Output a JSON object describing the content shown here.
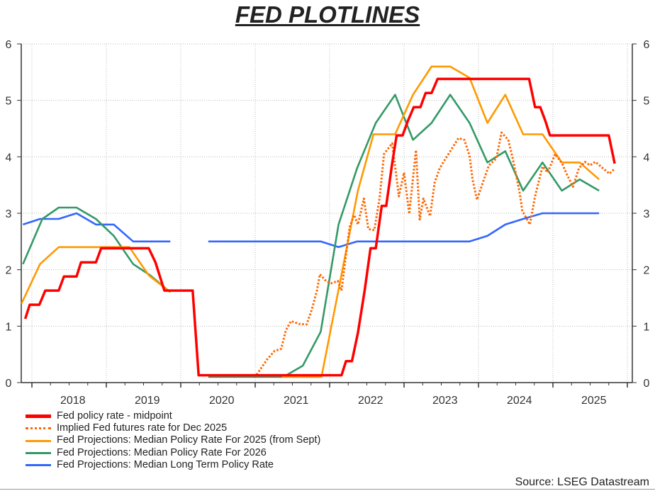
{
  "chart_data": {
    "type": "line",
    "title": "FED PLOTLINES",
    "xlabel": "",
    "ylabel": "",
    "xlim": [
      2017.86,
      2026.07
    ],
    "ylim": [
      0,
      6
    ],
    "y_ticks": [
      "0",
      "1",
      "2",
      "3",
      "4",
      "5",
      "6"
    ],
    "x_tick_labels": [
      "2018",
      "2019",
      "2020",
      "2021",
      "2022",
      "2023",
      "2024",
      "2025"
    ],
    "grid": true,
    "legend_placement": "bottom-left",
    "source": "Source: LSEG Datastream",
    "series": [
      {
        "name": "Fed policy rate - midpoint",
        "color": "#FF0000",
        "style": "solid",
        "points": [
          [
            2017.91,
            1.13
          ],
          [
            2017.97,
            1.38
          ],
          [
            2018.1,
            1.38
          ],
          [
            2018.18,
            1.63
          ],
          [
            2018.36,
            1.63
          ],
          [
            2018.43,
            1.88
          ],
          [
            2018.6,
            1.88
          ],
          [
            2018.66,
            2.13
          ],
          [
            2018.86,
            2.13
          ],
          [
            2018.93,
            2.38
          ],
          [
            2019.57,
            2.38
          ],
          [
            2019.66,
            2.13
          ],
          [
            2019.72,
            1.88
          ],
          [
            2019.78,
            1.63
          ],
          [
            2020.16,
            1.63
          ],
          [
            2020.24,
            0.13
          ],
          [
            2022.16,
            0.13
          ],
          [
            2022.22,
            0.38
          ],
          [
            2022.3,
            0.38
          ],
          [
            2022.38,
            0.88
          ],
          [
            2022.47,
            1.63
          ],
          [
            2022.55,
            2.38
          ],
          [
            2022.62,
            2.38
          ],
          [
            2022.7,
            3.13
          ],
          [
            2022.76,
            3.13
          ],
          [
            2022.84,
            3.88
          ],
          [
            2022.9,
            4.38
          ],
          [
            2022.98,
            4.38
          ],
          [
            2023.05,
            4.63
          ],
          [
            2023.13,
            4.88
          ],
          [
            2023.22,
            4.88
          ],
          [
            2023.29,
            5.13
          ],
          [
            2023.37,
            5.13
          ],
          [
            2023.45,
            5.38
          ],
          [
            2024.68,
            5.38
          ],
          [
            2024.76,
            4.88
          ],
          [
            2024.83,
            4.88
          ],
          [
            2024.9,
            4.63
          ],
          [
            2024.96,
            4.38
          ],
          [
            2025.75,
            4.38
          ],
          [
            2025.83,
            3.88
          ]
        ]
      },
      {
        "name": "Implied Fed futures rate for Dec 2025",
        "color": "#FF6600",
        "style": "dotted",
        "points": [
          [
            2021.02,
            0.14
          ],
          [
            2021.16,
            0.41
          ],
          [
            2021.26,
            0.56
          ],
          [
            2021.35,
            0.6
          ],
          [
            2021.41,
            0.92
          ],
          [
            2021.48,
            1.09
          ],
          [
            2021.59,
            1.04
          ],
          [
            2021.69,
            1.03
          ],
          [
            2021.76,
            1.29
          ],
          [
            2021.83,
            1.63
          ],
          [
            2021.87,
            1.92
          ],
          [
            2021.95,
            1.8
          ],
          [
            2022.02,
            1.76
          ],
          [
            2022.11,
            1.8
          ],
          [
            2022.16,
            1.63
          ],
          [
            2022.21,
            2.17
          ],
          [
            2022.27,
            2.76
          ],
          [
            2022.33,
            2.97
          ],
          [
            2022.38,
            2.8
          ],
          [
            2022.46,
            3.26
          ],
          [
            2022.52,
            2.72
          ],
          [
            2022.6,
            2.7
          ],
          [
            2022.67,
            3.26
          ],
          [
            2022.73,
            4.05
          ],
          [
            2022.84,
            4.24
          ],
          [
            2022.89,
            3.72
          ],
          [
            2022.93,
            3.3
          ],
          [
            2023.0,
            3.72
          ],
          [
            2023.07,
            2.99
          ],
          [
            2023.16,
            4.12
          ],
          [
            2023.21,
            2.89
          ],
          [
            2023.26,
            3.26
          ],
          [
            2023.35,
            2.95
          ],
          [
            2023.41,
            3.54
          ],
          [
            2023.48,
            3.8
          ],
          [
            2023.54,
            3.93
          ],
          [
            2023.64,
            4.14
          ],
          [
            2023.73,
            4.33
          ],
          [
            2023.81,
            4.3
          ],
          [
            2023.88,
            4.02
          ],
          [
            2023.92,
            3.6
          ],
          [
            2023.98,
            3.24
          ],
          [
            2024.05,
            3.51
          ],
          [
            2024.14,
            3.85
          ],
          [
            2024.24,
            3.97
          ],
          [
            2024.31,
            4.43
          ],
          [
            2024.4,
            4.3
          ],
          [
            2024.46,
            3.97
          ],
          [
            2024.55,
            3.39
          ],
          [
            2024.59,
            3.04
          ],
          [
            2024.69,
            2.8
          ],
          [
            2024.76,
            3.3
          ],
          [
            2024.86,
            3.83
          ],
          [
            2024.93,
            3.72
          ],
          [
            2025.03,
            4.05
          ],
          [
            2025.12,
            3.89
          ],
          [
            2025.19,
            3.68
          ],
          [
            2025.27,
            3.47
          ],
          [
            2025.35,
            3.8
          ],
          [
            2025.43,
            3.91
          ],
          [
            2025.5,
            3.85
          ],
          [
            2025.57,
            3.91
          ],
          [
            2025.67,
            3.8
          ],
          [
            2025.76,
            3.7
          ],
          [
            2025.83,
            3.79
          ]
        ]
      },
      {
        "name": "Fed Projections: Median Policy Rate For 2025 (from Sept)",
        "color": "#FF9900",
        "style": "solid",
        "points": [
          [
            2017.86,
            1.4
          ],
          [
            2018.11,
            2.1
          ],
          [
            2018.36,
            2.4
          ],
          [
            2018.6,
            2.4
          ],
          [
            2018.86,
            2.4
          ],
          [
            2019.1,
            2.4
          ],
          [
            2019.31,
            2.4
          ],
          [
            2019.57,
            1.9
          ],
          [
            2019.86,
            1.6
          ],
          null,
          [
            2021.36,
            0.1
          ],
          [
            2021.89,
            0.1
          ],
          [
            2022.38,
            3.4
          ],
          [
            2022.59,
            4.4
          ],
          [
            2022.88,
            4.4
          ],
          [
            2023.12,
            5.1
          ],
          [
            2023.37,
            5.6
          ],
          [
            2023.62,
            5.6
          ],
          [
            2023.88,
            5.4
          ],
          [
            2024.12,
            4.6
          ],
          [
            2024.36,
            5.1
          ],
          [
            2024.6,
            4.4
          ],
          [
            2024.86,
            4.4
          ],
          [
            2025.12,
            3.9
          ],
          [
            2025.36,
            3.9
          ],
          [
            2025.62,
            3.6
          ]
        ]
      },
      {
        "name": "Fed Projections: Median Policy Rate For 2026",
        "color": "#339966",
        "style": "solid",
        "points": [
          [
            2017.88,
            2.1
          ],
          [
            2018.14,
            2.9
          ],
          [
            2018.36,
            3.1
          ],
          [
            2018.6,
            3.1
          ],
          [
            2018.86,
            2.9
          ],
          [
            2019.1,
            2.6
          ],
          [
            2019.36,
            2.1
          ],
          [
            2019.59,
            1.9
          ],
          [
            2019.86,
            1.6
          ],
          null,
          [
            2020.37,
            0.1
          ],
          [
            2021.38,
            0.1
          ],
          [
            2021.64,
            0.3
          ],
          [
            2021.88,
            0.9
          ],
          [
            2022.12,
            2.8
          ],
          [
            2022.37,
            3.8
          ],
          [
            2022.62,
            4.6
          ],
          [
            2022.88,
            5.1
          ],
          [
            2023.12,
            4.3
          ],
          [
            2023.37,
            4.6
          ],
          [
            2023.62,
            5.1
          ],
          [
            2023.88,
            4.6
          ],
          [
            2024.12,
            3.9
          ],
          [
            2024.36,
            4.1
          ],
          [
            2024.6,
            3.4
          ],
          [
            2024.86,
            3.9
          ],
          [
            2025.12,
            3.4
          ],
          [
            2025.36,
            3.6
          ],
          [
            2025.62,
            3.4
          ]
        ]
      },
      {
        "name": "Fed Projections: Median Long Term Policy Rate",
        "color": "#3366FF",
        "style": "solid",
        "points": [
          [
            2017.88,
            2.8
          ],
          [
            2018.11,
            2.9
          ],
          [
            2018.36,
            2.9
          ],
          [
            2018.6,
            3.0
          ],
          [
            2018.86,
            2.8
          ],
          [
            2019.1,
            2.8
          ],
          [
            2019.36,
            2.5
          ],
          [
            2019.86,
            2.5
          ],
          null,
          [
            2020.37,
            2.5
          ],
          [
            2021.88,
            2.5
          ],
          [
            2022.12,
            2.4
          ],
          [
            2022.37,
            2.5
          ],
          [
            2023.88,
            2.5
          ],
          [
            2024.12,
            2.6
          ],
          [
            2024.36,
            2.8
          ],
          [
            2024.6,
            2.9
          ],
          [
            2024.86,
            3.0
          ],
          [
            2025.62,
            3.0
          ]
        ]
      }
    ]
  }
}
